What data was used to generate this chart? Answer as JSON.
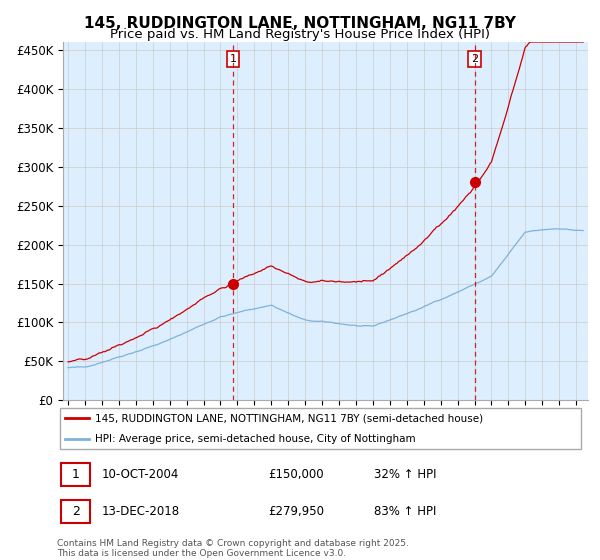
{
  "title_line1": "145, RUDDINGTON LANE, NOTTINGHAM, NG11 7BY",
  "title_line2": "Price paid vs. HM Land Registry's House Price Index (HPI)",
  "legend_line1": "145, RUDDINGTON LANE, NOTTINGHAM, NG11 7BY (semi-detached house)",
  "legend_line2": "HPI: Average price, semi-detached house, City of Nottingham",
  "footnote": "Contains HM Land Registry data © Crown copyright and database right 2025.\nThis data is licensed under the Open Government Licence v3.0.",
  "sale1_date": "10-OCT-2004",
  "sale1_price": "£150,000",
  "sale1_hpi": "32% ↑ HPI",
  "sale2_date": "13-DEC-2018",
  "sale2_price": "£279,950",
  "sale2_hpi": "83% ↑ HPI",
  "sale1_year": 2004.79,
  "sale2_year": 2018.96,
  "sale1_price_val": 150000,
  "sale2_price_val": 279950,
  "price_color": "#cc0000",
  "hpi_color": "#7fb2d8",
  "bg_color": "#ddeeff",
  "grid_color": "#cccccc",
  "ylim_max": 460000,
  "xlim_start": 1994.7,
  "xlim_end": 2025.7,
  "title_fontsize": 11,
  "subtitle_fontsize": 9.5
}
